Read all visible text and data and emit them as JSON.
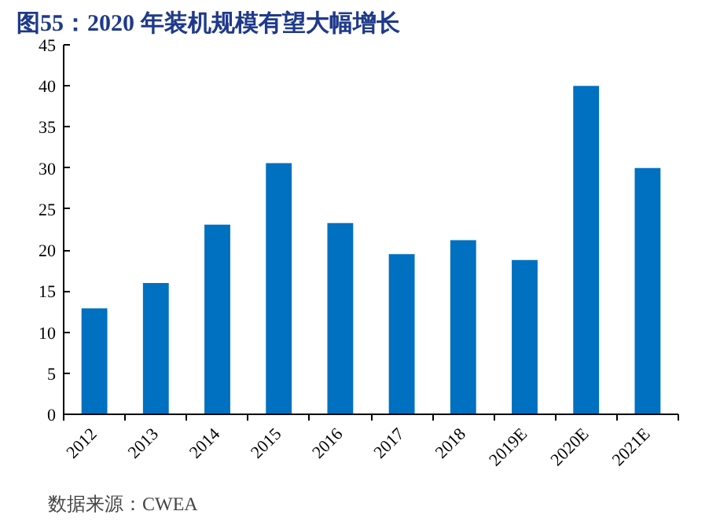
{
  "chart_data": {
    "type": "bar",
    "title": "图55：2020 年装机规模有望大幅增长",
    "categories": [
      "2012",
      "2013",
      "2014",
      "2015",
      "2016",
      "2017",
      "2018",
      "2019E",
      "2020E",
      "2021E"
    ],
    "values": [
      12.9,
      16.0,
      23.1,
      30.6,
      23.3,
      19.5,
      21.2,
      18.8,
      40.0,
      30.0
    ],
    "color": "#0070c0",
    "ylim": [
      0,
      45
    ],
    "yticks": [
      0,
      5,
      10,
      15,
      20,
      25,
      30,
      35,
      40,
      45
    ],
    "grid": false,
    "annotations": [
      "数据来源：CWEA"
    ]
  }
}
